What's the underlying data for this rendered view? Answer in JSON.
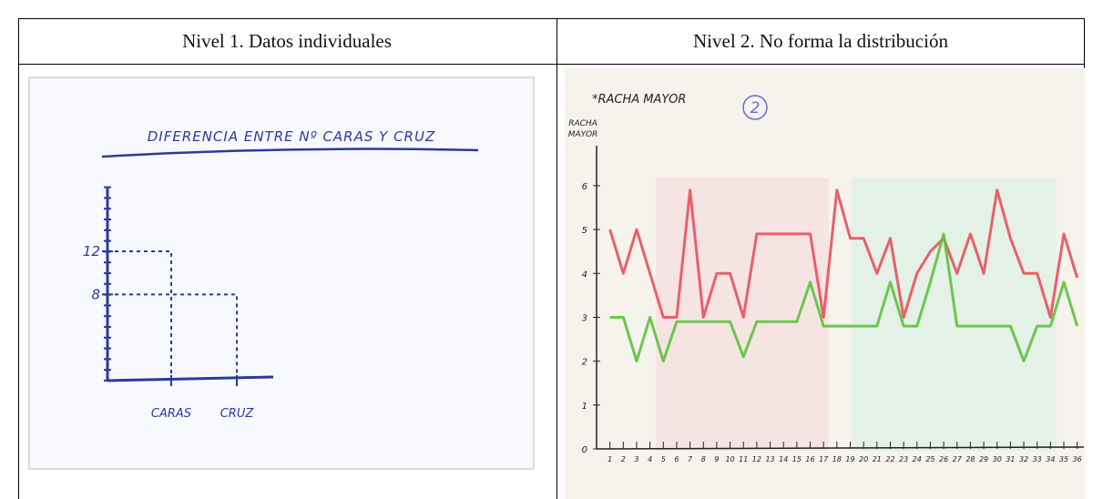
{
  "table": {
    "headers": [
      "Nivel 1. Datos individuales",
      "Nivel 2. No forma la distribución"
    ]
  },
  "chart_data": [
    {
      "type": "bar",
      "title": "DIFERENCIA ENTRE Nº CARAS Y CRUZ",
      "categories": [
        "CARAS",
        "CRUZ"
      ],
      "values": [
        12,
        8
      ],
      "color": "#2b3a9c",
      "ylim": [
        0,
        18
      ],
      "yticks": [
        8,
        12
      ]
    },
    {
      "type": "line",
      "title": "*RACHA MAYOR",
      "annotation": "2",
      "y_label": [
        "RACHA",
        "MAYOR"
      ],
      "x": [
        1,
        2,
        3,
        4,
        5,
        6,
        7,
        8,
        9,
        10,
        11,
        12,
        13,
        14,
        15,
        16,
        17,
        18,
        19,
        20,
        21,
        22,
        23,
        24,
        25,
        26,
        27,
        28,
        29,
        30,
        31,
        32,
        33,
        34,
        35,
        36
      ],
      "xlim": [
        0,
        36.5
      ],
      "ylim": [
        0,
        6.6
      ],
      "yticks": [
        0,
        1,
        2,
        3,
        4,
        5,
        6
      ],
      "series": [
        {
          "color": "#e8505b",
          "values": [
            5,
            4,
            5,
            4,
            3,
            3,
            5.9,
            3,
            4,
            4,
            3,
            4.9,
            4.9,
            4.9,
            4.9,
            4.9,
            3,
            5.9,
            4.8,
            4.8,
            4,
            4.8,
            3,
            4,
            4.5,
            4.8,
            4,
            4.9,
            4,
            5.9,
            4.8,
            4,
            4,
            3,
            4.9,
            3.9
          ]
        },
        {
          "color": "#5cc23a",
          "values": [
            3,
            3,
            2,
            3,
            2,
            2.9,
            2.9,
            2.9,
            2.9,
            2.9,
            2.1,
            2.9,
            2.9,
            2.9,
            2.9,
            3.8,
            2.8,
            2.8,
            2.8,
            2.8,
            2.8,
            3.8,
            2.8,
            2.8,
            3.8,
            4.9,
            2.8,
            2.8,
            2.8,
            2.8,
            2.8,
            2,
            2.8,
            2.8,
            3.8,
            2.8
          ]
        }
      ]
    }
  ]
}
